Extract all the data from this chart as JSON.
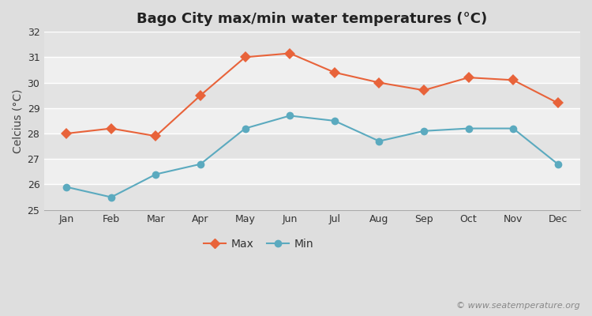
{
  "title": "Bago City max/min water temperatures (°C)",
  "ylabel": "Celcius (°C)",
  "months": [
    "Jan",
    "Feb",
    "Mar",
    "Apr",
    "May",
    "Jun",
    "Jul",
    "Aug",
    "Sep",
    "Oct",
    "Nov",
    "Dec"
  ],
  "max_temps": [
    28.0,
    28.2,
    27.9,
    29.5,
    31.0,
    31.15,
    30.4,
    30.0,
    29.7,
    30.2,
    30.1,
    29.2
  ],
  "min_temps": [
    25.9,
    25.5,
    26.4,
    26.8,
    28.2,
    28.7,
    28.5,
    27.7,
    28.1,
    28.2,
    28.2,
    26.8
  ],
  "max_color": "#E8633A",
  "min_color": "#5BAABF",
  "bg_color": "#DEDEDE",
  "plot_bg_color_light": "#EFEFEF",
  "plot_bg_color_dark": "#E3E3E3",
  "grid_color": "#FFFFFF",
  "ylim": [
    25,
    32
  ],
  "yticks": [
    25,
    26,
    27,
    28,
    29,
    30,
    31,
    32
  ],
  "legend_labels": [
    "Max",
    "Min"
  ],
  "watermark": "© www.seatemperature.org",
  "title_fontsize": 13,
  "axis_label_fontsize": 10,
  "tick_fontsize": 9,
  "legend_fontsize": 10,
  "watermark_fontsize": 8
}
